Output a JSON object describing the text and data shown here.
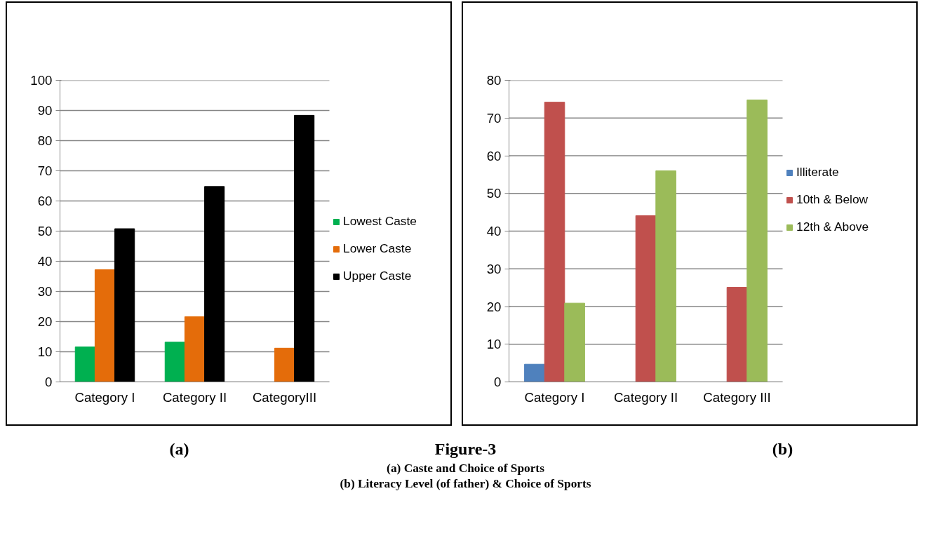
{
  "chart_data": [
    {
      "type": "bar",
      "categories": [
        "Category I",
        "Category II",
        "CategoryIII"
      ],
      "series": [
        {
          "name": "Lowest Caste",
          "color": "#00b050",
          "values": [
            11.6,
            13.2,
            null
          ]
        },
        {
          "name": "Lower Caste",
          "color": "#e46c0a",
          "values": [
            37.2,
            21.6,
            11.2
          ]
        },
        {
          "name": "Upper Caste",
          "color": "#000000",
          "values": [
            50.8,
            64.8,
            88.4
          ]
        }
      ],
      "ylim": [
        0,
        100
      ],
      "yticks": [
        0,
        10,
        20,
        30,
        40,
        50,
        60,
        70,
        80,
        90,
        100
      ],
      "grid": "y",
      "legend": "right",
      "annotations": [
        "(a)",
        "Figure-3",
        "(a) Caste and Choice of Sports",
        "(b) Literacy Level (of father) & Choice of Sports"
      ]
    },
    {
      "type": "bar",
      "categories": [
        "Category I",
        "Category II",
        "Category III"
      ],
      "series": [
        {
          "name": "Illiterate",
          "color": "#4f81bd",
          "values": [
            4.7,
            null,
            null
          ]
        },
        {
          "name": "10th & Below",
          "color": "#c0504d",
          "values": [
            74.2,
            44.1,
            25.1
          ]
        },
        {
          "name": "12th & Above",
          "color": "#9bbb59",
          "values": [
            20.9,
            56.0,
            74.8
          ]
        }
      ],
      "ylim": [
        0,
        80
      ],
      "yticks": [
        0,
        10,
        20,
        30,
        40,
        50,
        60,
        70,
        80
      ],
      "grid": "y",
      "legend": "right",
      "annotations": [
        "(b)"
      ]
    }
  ]
}
